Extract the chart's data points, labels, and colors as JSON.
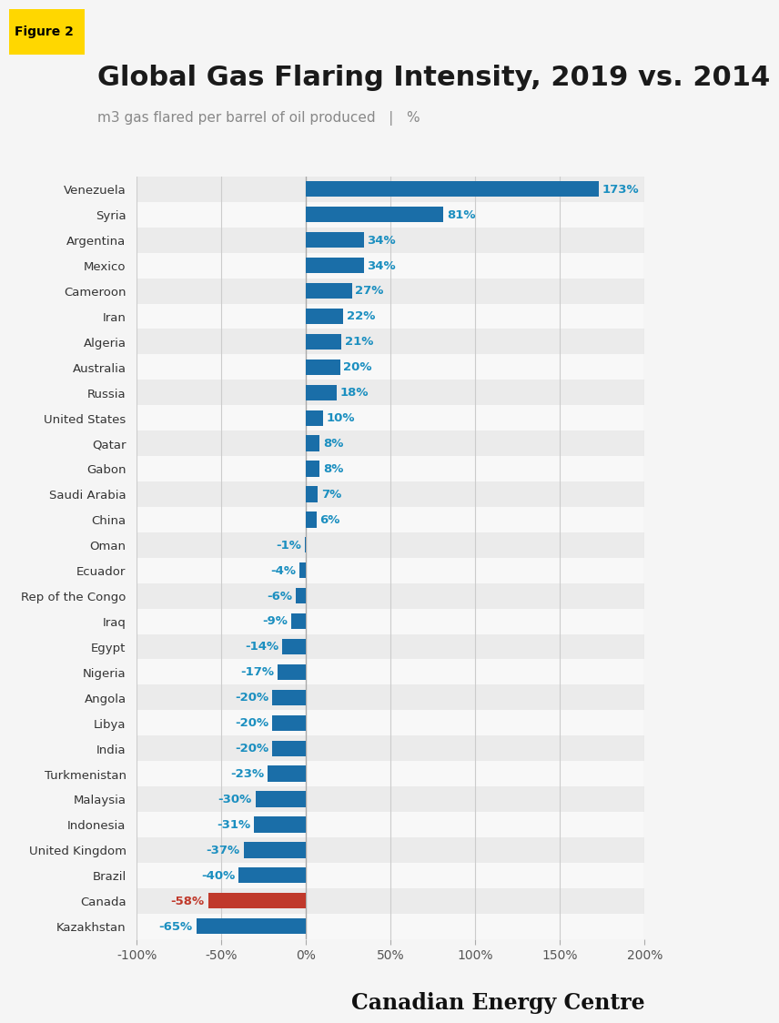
{
  "title": "Global Gas Flaring Intensity, 2019 vs. 2014",
  "subtitle": "m3 gas flared per barrel of oil produced   |   %",
  "figure_label": "Figure 2",
  "figure_label_bg": "#FFD700",
  "categories": [
    "Venezuela",
    "Syria",
    "Argentina",
    "Mexico",
    "Cameroon",
    "Iran",
    "Algeria",
    "Australia",
    "Russia",
    "United States",
    "Qatar",
    "Gabon",
    "Saudi Arabia",
    "China",
    "Oman",
    "Ecuador",
    "Rep of the Congo",
    "Iraq",
    "Egypt",
    "Nigeria",
    "Angola",
    "Libya",
    "India",
    "Turkmenistan",
    "Malaysia",
    "Indonesia",
    "United Kingdom",
    "Brazil",
    "Canada",
    "Kazakhstan"
  ],
  "values": [
    173,
    81,
    34,
    34,
    27,
    22,
    21,
    20,
    18,
    10,
    8,
    8,
    7,
    6,
    -1,
    -4,
    -6,
    -9,
    -14,
    -17,
    -20,
    -20,
    -20,
    -23,
    -30,
    -31,
    -37,
    -40,
    -58,
    -65
  ],
  "bar_color_default": "#1a6ea8",
  "bar_color_highlight": "#c0392b",
  "highlight_country": "Canada",
  "label_color_default": "#1b8fc0",
  "label_color_highlight": "#c0392b",
  "xlim": [
    -100,
    200
  ],
  "xticks": [
    -100,
    -50,
    0,
    50,
    100,
    150,
    200
  ],
  "xtick_labels": [
    "-100%",
    "-50%",
    "0%",
    "50%",
    "100%",
    "150%",
    "200%"
  ],
  "bg_color_odd": "#ebebeb",
  "bg_color_even": "#f8f8f8",
  "footer_text": "Canadian Energy Centre",
  "title_fontsize": 22,
  "subtitle_fontsize": 11,
  "tick_fontsize": 10,
  "bar_label_fontsize": 9.5,
  "country_fontsize": 9.5,
  "fig_bg": "#f5f5f5"
}
